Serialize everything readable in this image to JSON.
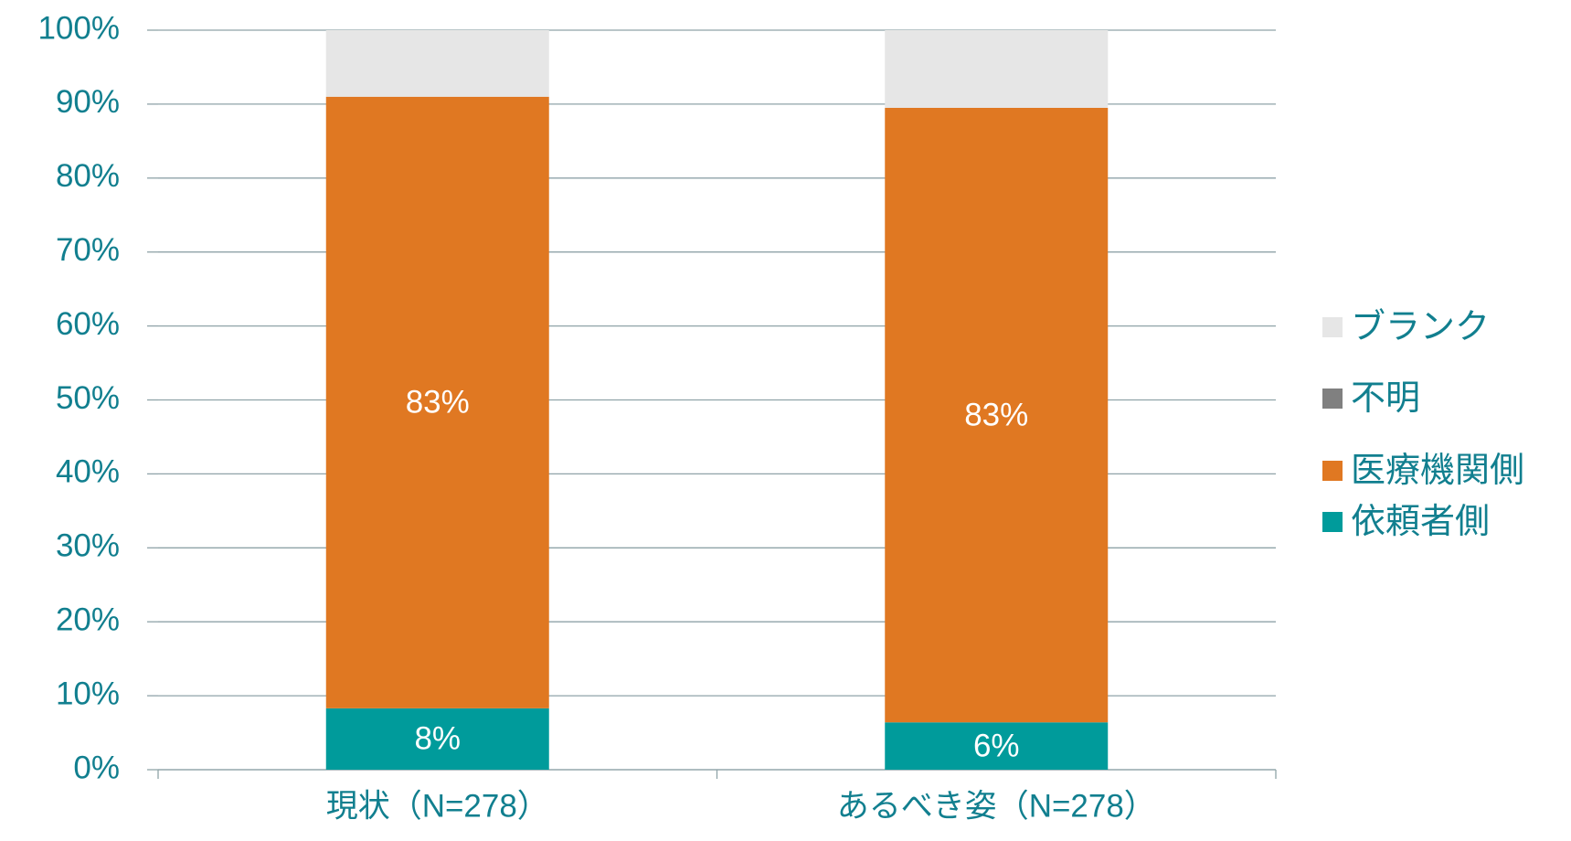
{
  "chart_data": {
    "type": "stacked_bar",
    "categories": [
      "現状（N=278）",
      "あるべき姿（N=278）"
    ],
    "series": [
      {
        "name": "依頼者側",
        "color": "#009b9b",
        "values": [
          8.3,
          6.4
        ],
        "value_labels": [
          "8%",
          "6%"
        ]
      },
      {
        "name": "医療機関側",
        "color": "#e07822",
        "values": [
          82.7,
          83.1
        ],
        "value_labels": [
          "83%",
          "83%"
        ]
      },
      {
        "name": "不明",
        "color": "#808080",
        "values": [
          0,
          0
        ]
      },
      {
        "name": "ブランク",
        "color": "#e6e6e6",
        "values": [
          9,
          10.5
        ]
      }
    ],
    "ylim": [
      0,
      100
    ],
    "yticks": [
      {
        "value": 0,
        "label": "0%"
      },
      {
        "value": 10,
        "label": "10%"
      },
      {
        "value": 20,
        "label": "20%"
      },
      {
        "value": 30,
        "label": "30%"
      },
      {
        "value": 40,
        "label": "40%"
      },
      {
        "value": 50,
        "label": "50%"
      },
      {
        "value": 60,
        "label": "60%"
      },
      {
        "value": 70,
        "label": "70%"
      },
      {
        "value": 80,
        "label": "80%"
      },
      {
        "value": 90,
        "label": "90%"
      },
      {
        "value": 100,
        "label": "100%"
      }
    ],
    "grid": true,
    "legend": "right"
  }
}
